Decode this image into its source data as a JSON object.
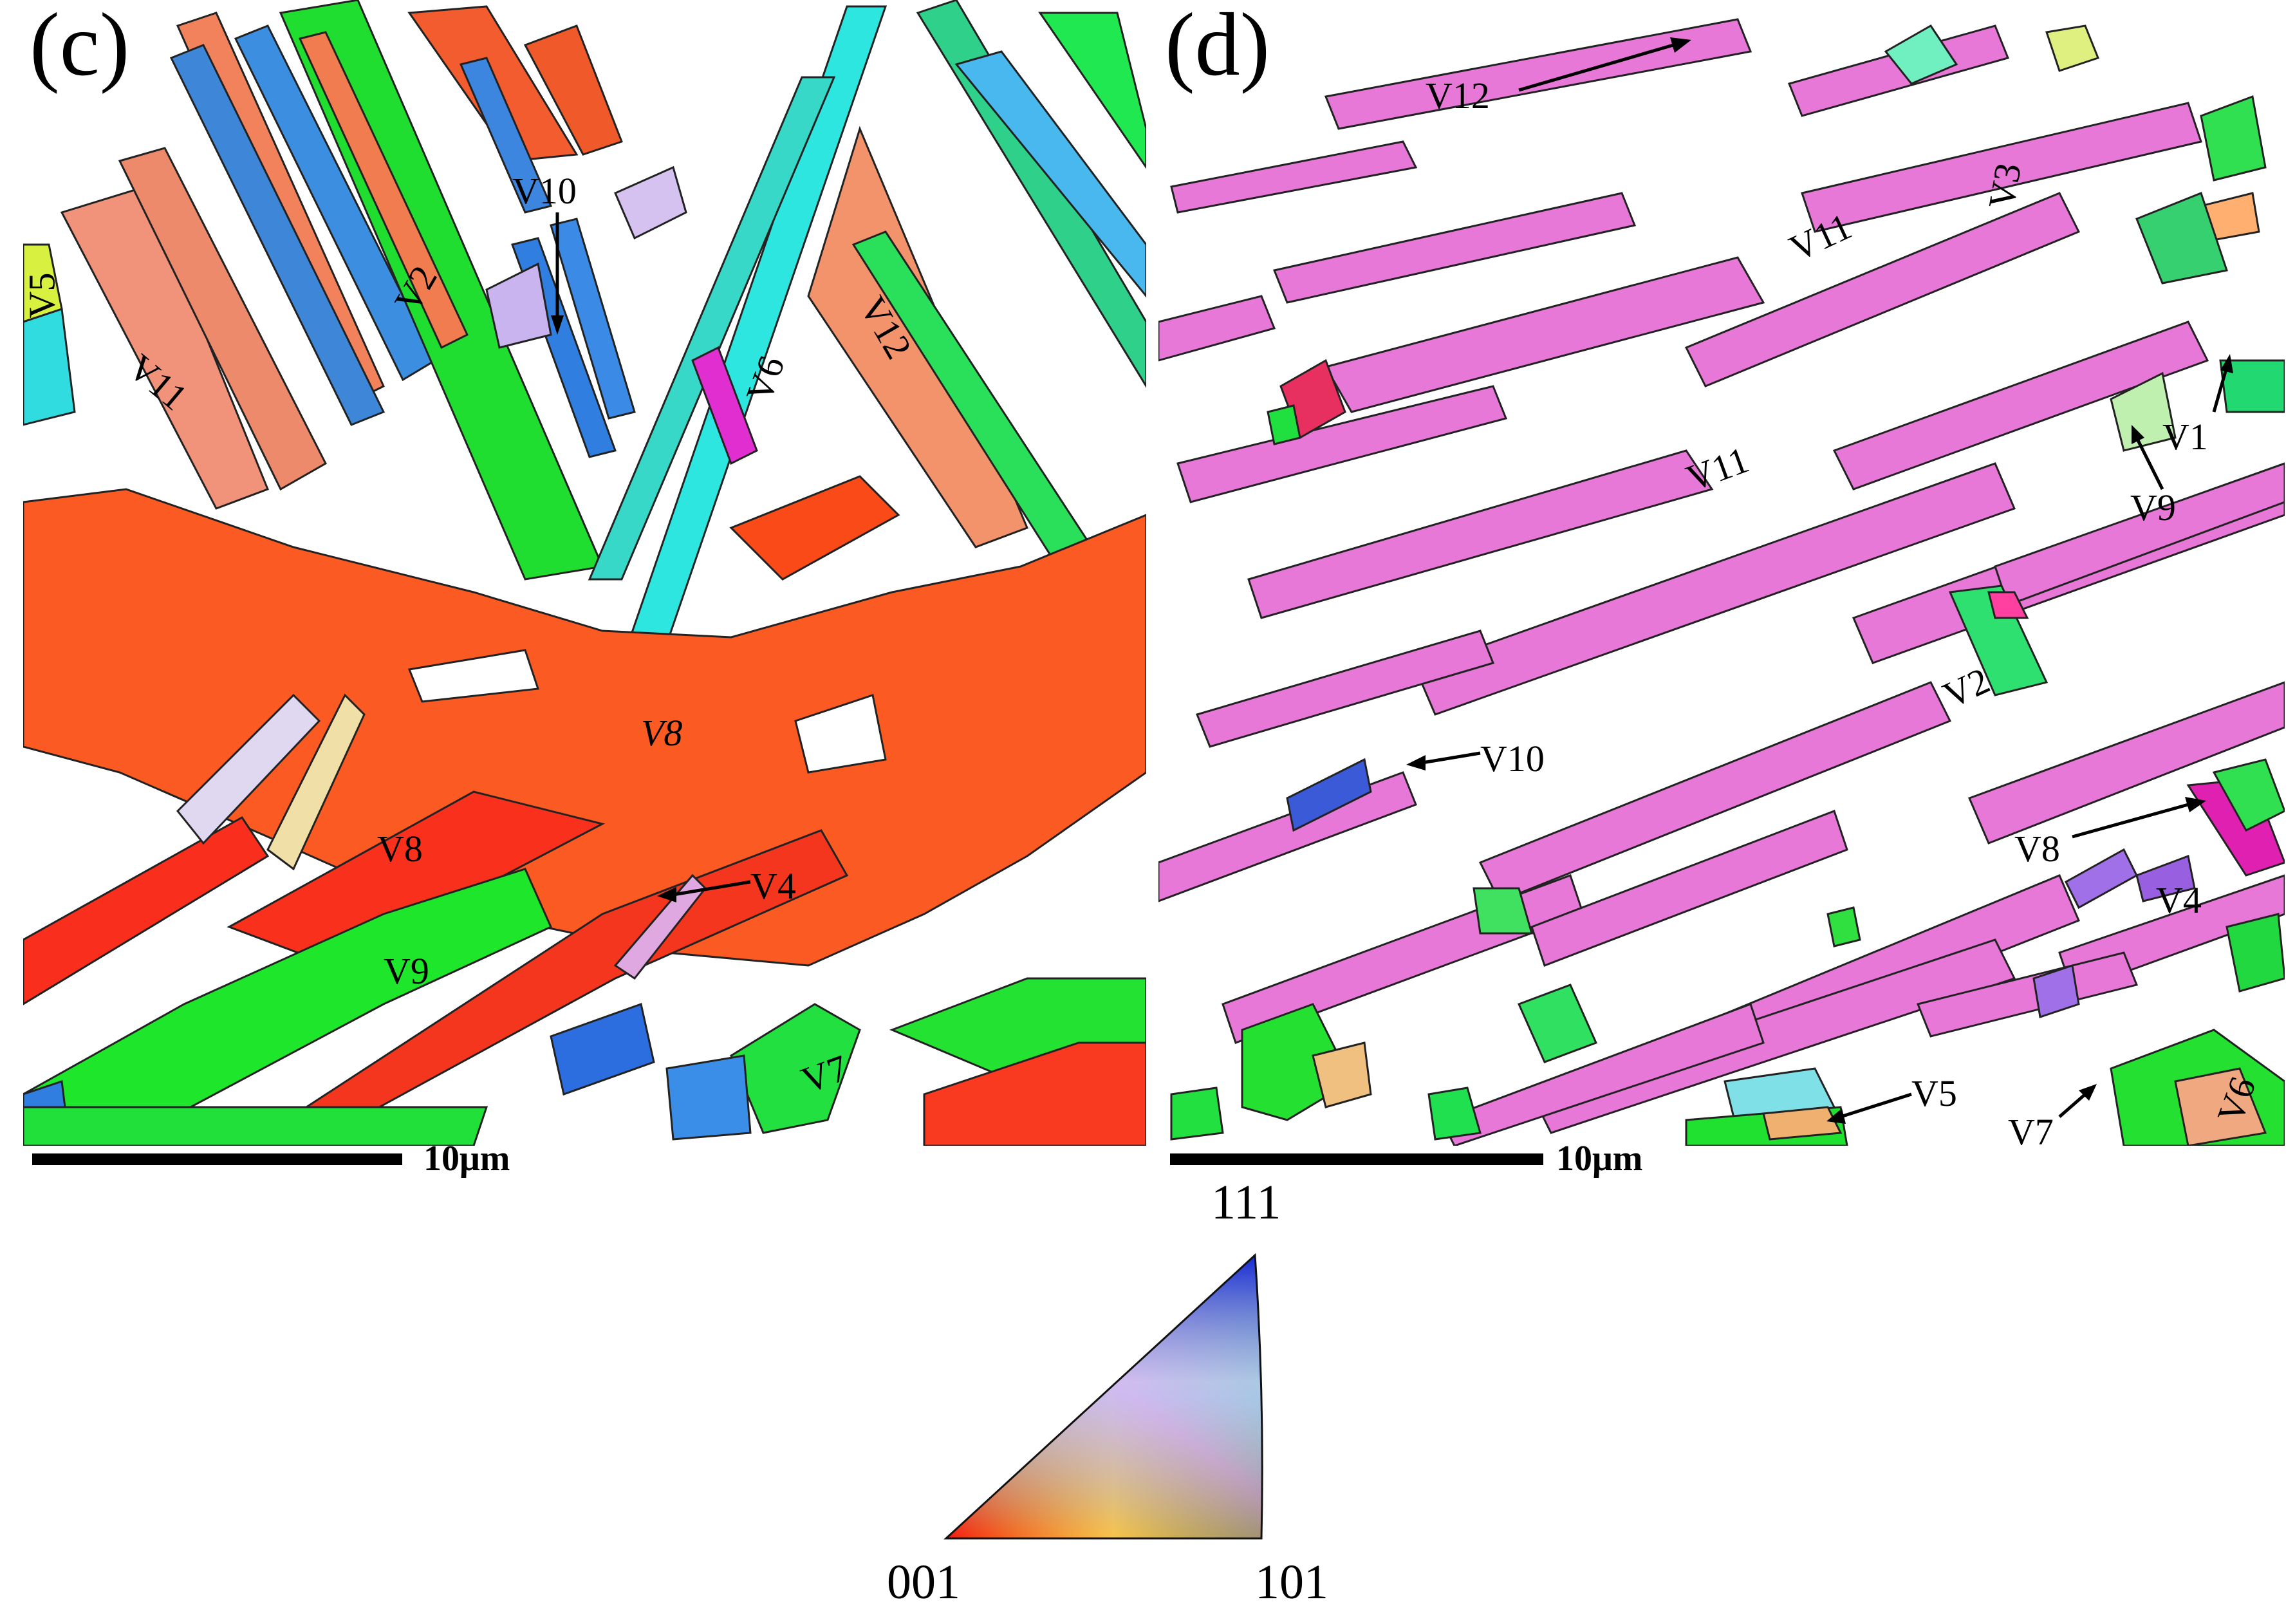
{
  "panels": {
    "c": {
      "letter": "(c)",
      "labels": {
        "v5": "V5",
        "v10": "V10",
        "v2": "V2",
        "v11": "V11",
        "v6": "V6",
        "v12": "V12",
        "v8a": "V8",
        "v8b": "V8",
        "v4": "V4",
        "v9": "V9",
        "v7": "V7"
      },
      "scale": "10μm"
    },
    "d": {
      "letter": "(d)",
      "labels": {
        "v12": "V12",
        "v3": "V3",
        "v11a": "V11",
        "v11b": "V11",
        "v1": "V1",
        "v9": "V9",
        "v2": "V2",
        "v10": "V10",
        "v8": "V8",
        "v4": "V4",
        "v5": "V5",
        "v7": "V7",
        "v6": "V6"
      },
      "scale": "10μm"
    }
  },
  "legend": {
    "top": "111",
    "left": "001",
    "right": "101"
  },
  "colors": {
    "red_001": "#ff2a1a",
    "orange": "#ff5a1e",
    "salmon": "#f08a70",
    "green_101": "#19e619",
    "cyan": "#28e8e0",
    "blue_111": "#1f5ad8",
    "magenta": "#e873d8",
    "purple": "#9a6ae8"
  }
}
